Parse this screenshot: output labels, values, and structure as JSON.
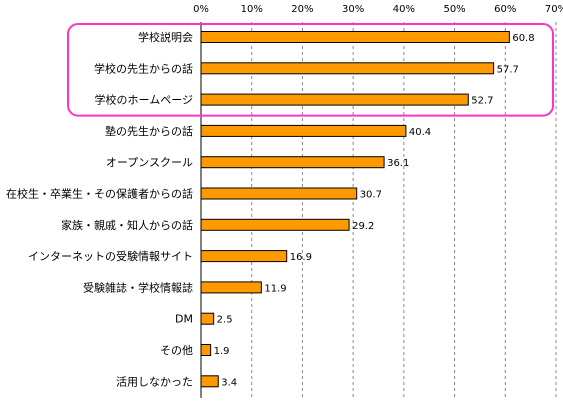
{
  "chart_data": {
    "type": "bar",
    "orientation": "horizontal",
    "categories": [
      "学校説明会",
      "学校の先生からの話",
      "学校のホームページ",
      "塾の先生からの話",
      "オープンスクール",
      "在校生・卒業生・その保護者からの話",
      "家族・親戚・知人からの話",
      "インターネットの受験情報サイト",
      "受験雑誌・学校情報誌",
      "DM",
      "その他",
      "活用しなかった"
    ],
    "values": [
      60.8,
      57.7,
      52.7,
      40.4,
      36.1,
      30.7,
      29.2,
      16.9,
      11.9,
      2.5,
      1.9,
      3.4
    ],
    "value_labels": [
      "60.8",
      "57.7",
      "52.7",
      "40.4",
      "36.1",
      "30.7",
      "29.2",
      "16.9",
      "11.9",
      "2.5",
      "1.9",
      "3.4"
    ],
    "xlim": [
      0,
      70
    ],
    "x_ticks": [
      0,
      10,
      20,
      30,
      40,
      50,
      60,
      70
    ],
    "x_tick_labels": [
      "0%",
      "10%",
      "20%",
      "30%",
      "40%",
      "50%",
      "60%",
      "70%"
    ],
    "grid": "vertical dashed",
    "highlight_categories": [
      0,
      1,
      2
    ],
    "colors": {
      "bar_fill": "#ff9900",
      "bar_stroke": "#000000",
      "grid": "#888888",
      "highlight": "#ff33cc"
    }
  }
}
